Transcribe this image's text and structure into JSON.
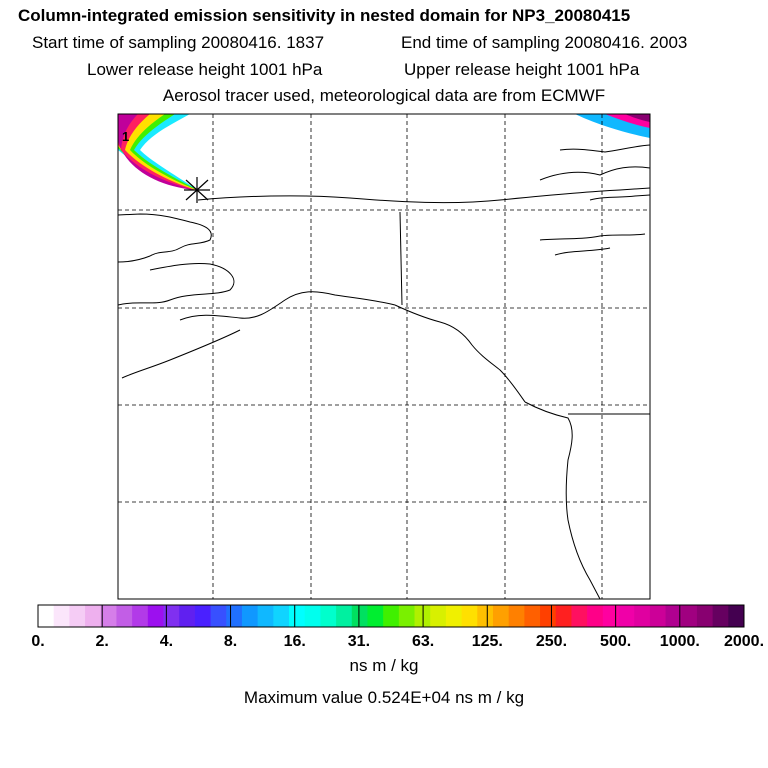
{
  "header": {
    "title": "Column-integrated emission sensitivity in nested domain for NP3_20080415",
    "start_time": "Start time of sampling 20080416.  1837",
    "end_time": "End time of sampling 20080416.  2003",
    "lower_height": "Lower release height 1001 hPa",
    "upper_height": "Upper release height 1001 hPa",
    "tracer_info": "Aerosol tracer used, meteorological data are from ECMWF"
  },
  "map": {
    "contour_label": "1",
    "release_marker": "star-cross-icon"
  },
  "colorbar": {
    "ticks": [
      "0.",
      "2.",
      "4.",
      "8.",
      "16.",
      "31.",
      "63.",
      "125.",
      "250.",
      "500.",
      "1000.",
      "2000."
    ],
    "colors": [
      "#ffffff",
      "#fbe6fb",
      "#f5ccf5",
      "#eeb0ee",
      "#d57ee9",
      "#c25ee6",
      "#b23ae8",
      "#9c10ef",
      "#8030f0",
      "#6020f0",
      "#4a20ff",
      "#3850ff",
      "#2070ff",
      "#1098ff",
      "#10b8ff",
      "#10d4ff",
      "#00ffff",
      "#00ffee",
      "#00ffcc",
      "#00f0a0",
      "#00e060",
      "#00ee30",
      "#40f000",
      "#7af000",
      "#b0f000",
      "#d8f000",
      "#f0f000",
      "#ffe000",
      "#ffc000",
      "#ffa000",
      "#ff8000",
      "#ff6000",
      "#ff4000",
      "#ff2020",
      "#ff1060",
      "#ff0088",
      "#ff00a0",
      "#f000a8",
      "#e000a0",
      "#cc0098",
      "#b00090",
      "#a00080",
      "#880070",
      "#660060",
      "#440050"
    ],
    "unit": "ns m / kg",
    "max_value": "Maximum value  0.524E+04 ns m / kg"
  }
}
